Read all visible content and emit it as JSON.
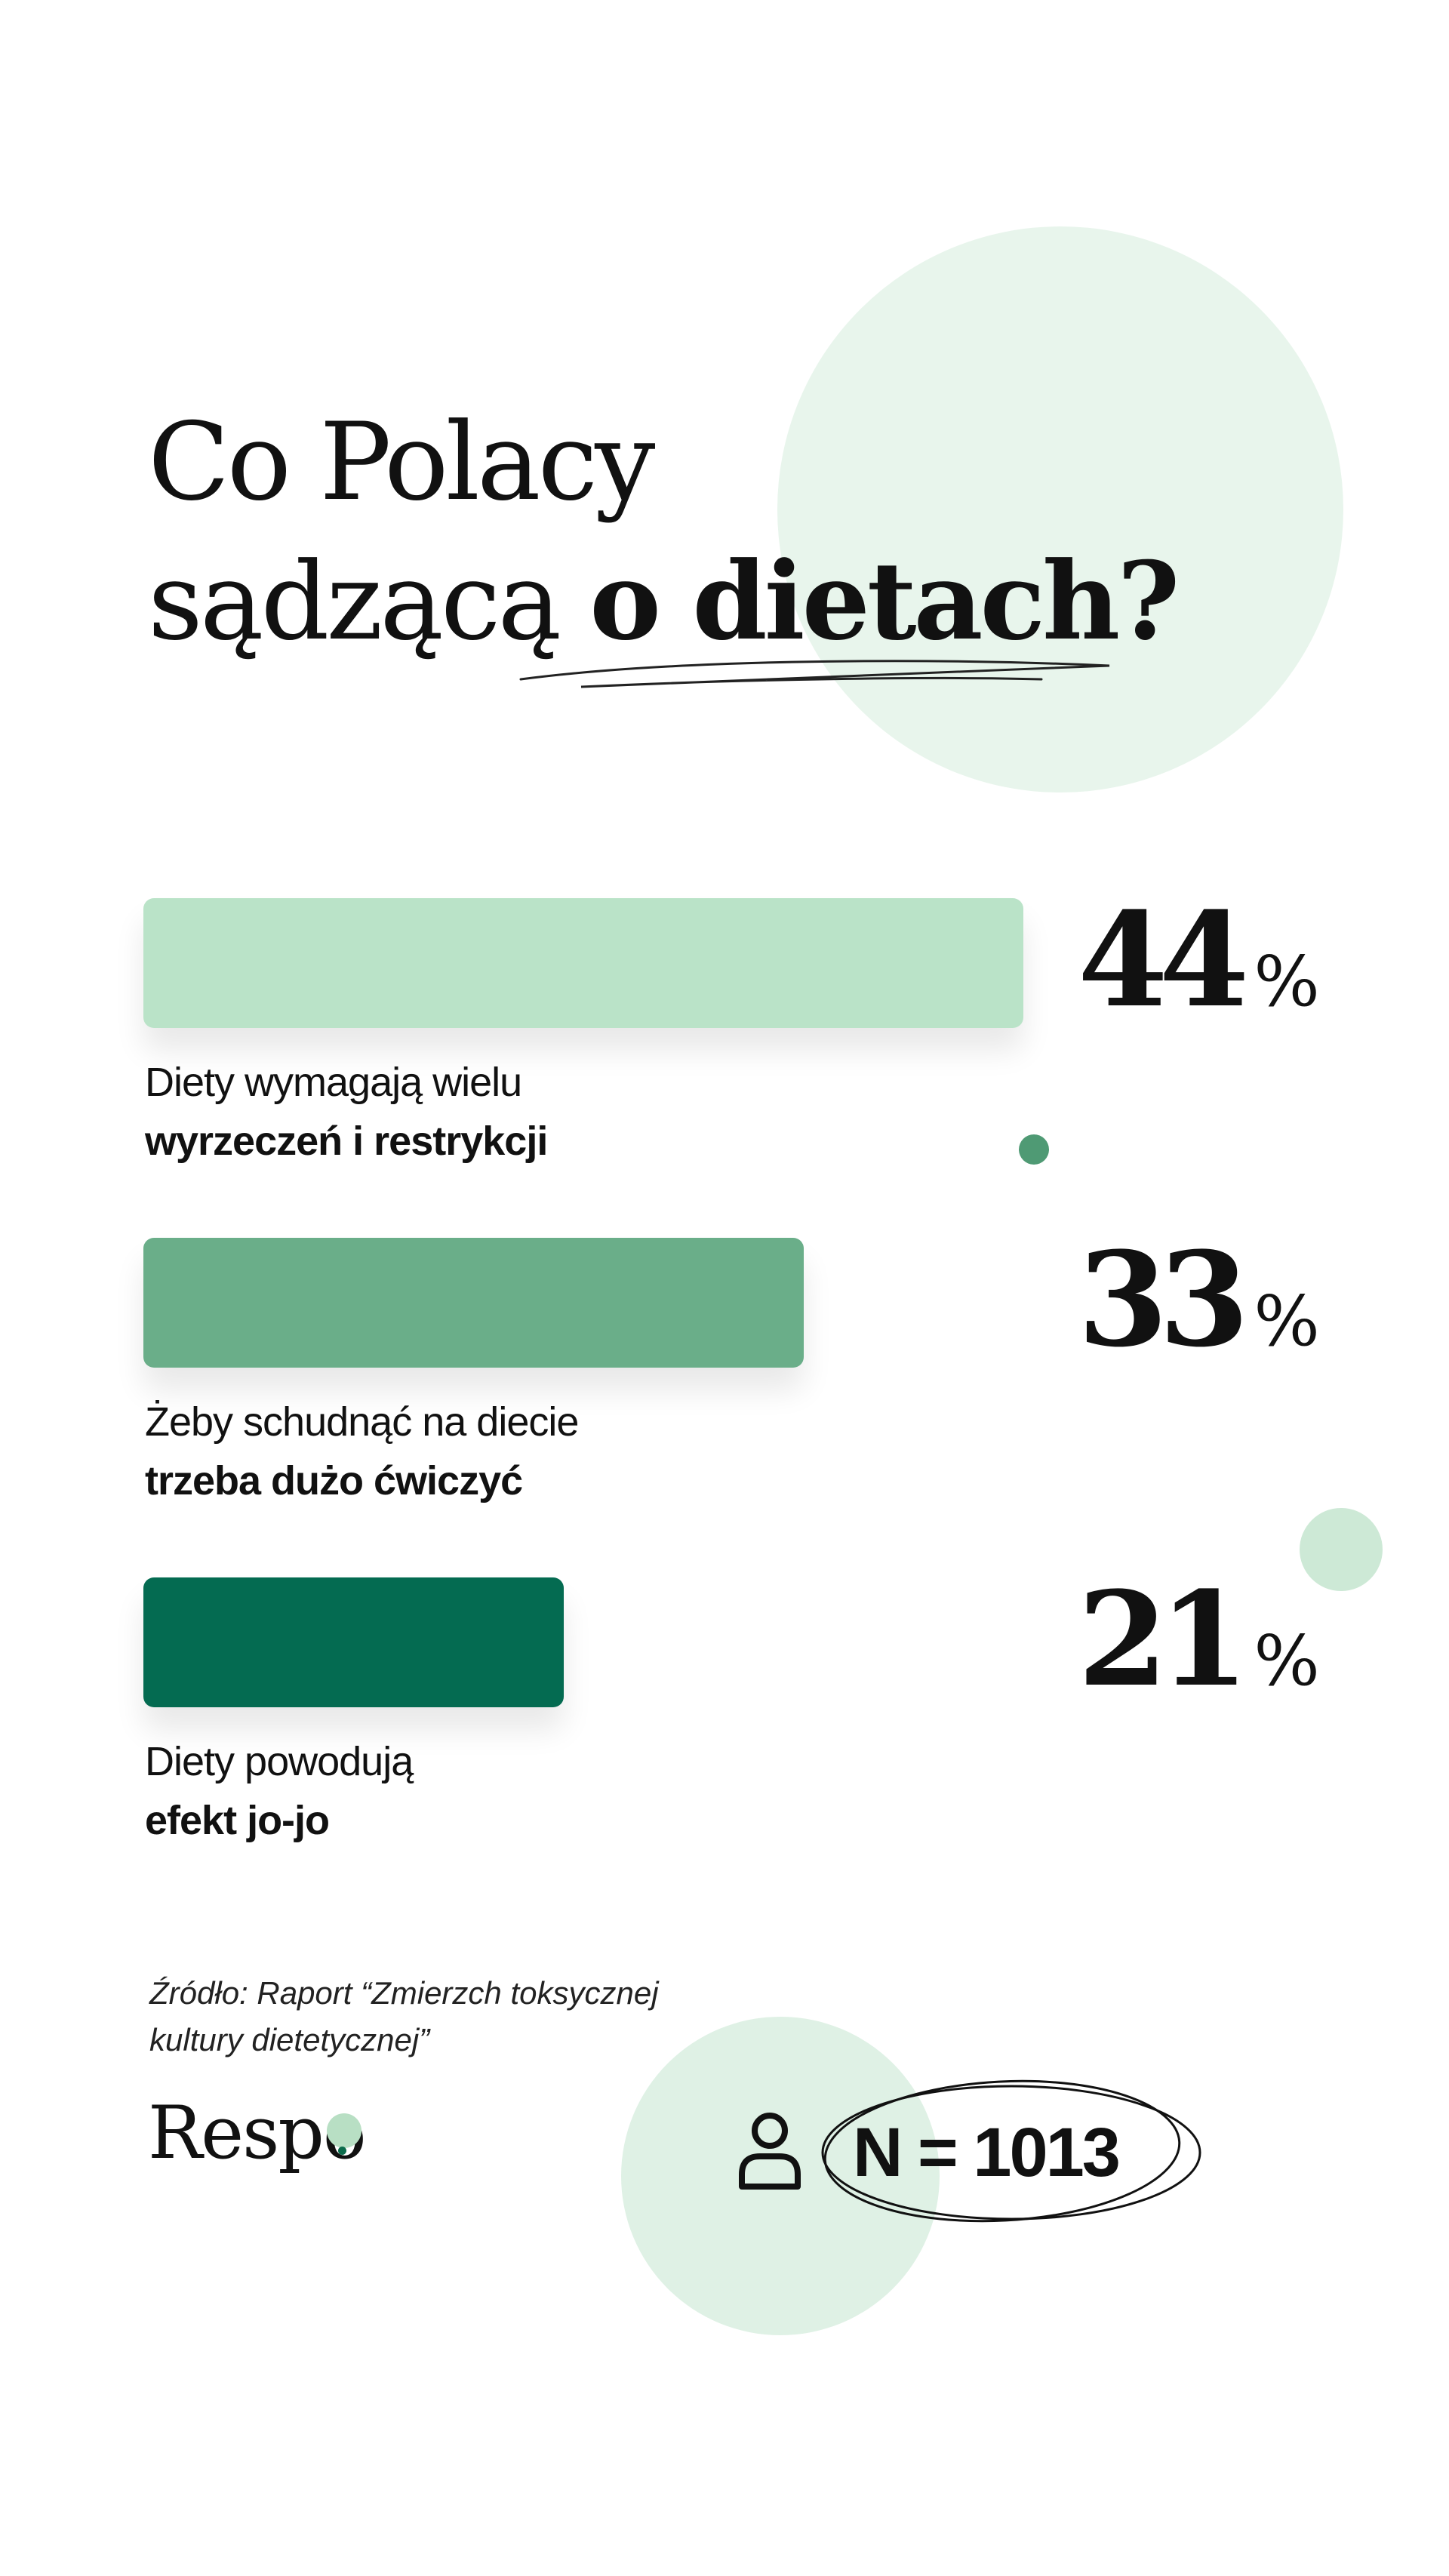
{
  "title": {
    "line1": "Co Polacy",
    "line2_regular": "sądzącą",
    "line2_bold": "o dietach?"
  },
  "chart_data": {
    "type": "bar",
    "orientation": "horizontal",
    "unit": "%",
    "categories": [
      [
        "Diety wymagają wielu",
        "wyrzeczeń i restrykcji"
      ],
      [
        "Żeby schudnąć na diecie",
        "trzeba dużo ćwiczyć"
      ],
      [
        "Diety powodują",
        "efekt jo-jo"
      ]
    ],
    "values": [
      44,
      33,
      21
    ],
    "colors": [
      "#bae3c8",
      "#6aae89",
      "#046b51"
    ],
    "percent_sign": "%"
  },
  "source": "Źródło: Raport “Zmierzch toksycznej kultury dietetycznej”",
  "logo": "Respo",
  "sample_size": "N = 1013",
  "icons": {
    "respondent": "user-icon"
  }
}
